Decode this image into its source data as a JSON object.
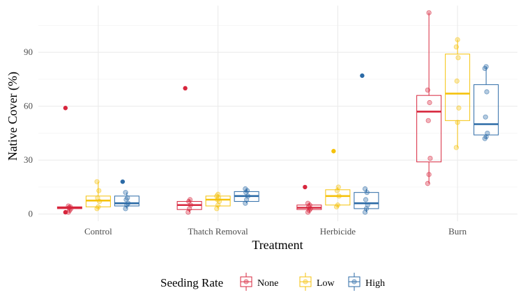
{
  "chart_data": {
    "type": "boxplot",
    "xlabel": "Treatment",
    "ylabel": "Native Cover (%)",
    "ylim": [
      -4,
      116
    ],
    "yticks": [
      0,
      30,
      60,
      90
    ],
    "grid": true,
    "legend": {
      "title": "Seeding Rate",
      "position": "bottom"
    },
    "categories": [
      "Control",
      "Thatch Removal",
      "Herbicide",
      "Burn"
    ],
    "series": [
      {
        "name": "None",
        "color": "#d7263d",
        "boxes": [
          {
            "min": 1,
            "q1": 3,
            "median": 3.5,
            "q3": 4,
            "max": 4.5,
            "outliers": [
              59,
              1
            ],
            "points": [
              1,
              2,
              3,
              3.5,
              4,
              4.5
            ]
          },
          {
            "min": 1,
            "q1": 2.5,
            "median": 5,
            "q3": 7,
            "max": 8,
            "outliers": [
              70
            ],
            "points": [
              1,
              3,
              5,
              7,
              8
            ]
          },
          {
            "min": 1,
            "q1": 2.5,
            "median": 3.5,
            "q3": 5,
            "max": 6,
            "outliers": [
              15
            ],
            "points": [
              1,
              2,
              3,
              4,
              5,
              6
            ]
          },
          {
            "min": 17,
            "q1": 29,
            "median": 57,
            "q3": 66,
            "max": 112,
            "outliers": [],
            "points": [
              17,
              22,
              31,
              52,
              62,
              69,
              112
            ]
          }
        ]
      },
      {
        "name": "Low",
        "color": "#f5c20b",
        "boxes": [
          {
            "min": 3,
            "q1": 4,
            "median": 7.5,
            "q3": 10,
            "max": 18,
            "outliers": [],
            "points": [
              3,
              4,
              7,
              9,
              13,
              18
            ]
          },
          {
            "min": 3,
            "q1": 4.5,
            "median": 8,
            "q3": 10,
            "max": 11,
            "outliers": [],
            "points": [
              3,
              5,
              7,
              8,
              9,
              10,
              11
            ]
          },
          {
            "min": 4,
            "q1": 5,
            "median": 10,
            "q3": 13.5,
            "max": 15,
            "outliers": [
              35
            ],
            "points": [
              4,
              5,
              10,
              13,
              15
            ]
          },
          {
            "min": 37,
            "q1": 52,
            "median": 67,
            "q3": 89,
            "max": 97,
            "outliers": [],
            "points": [
              37,
              51,
              59,
              74,
              87,
              93,
              97
            ]
          }
        ]
      },
      {
        "name": "High",
        "color": "#2b6aa6",
        "boxes": [
          {
            "min": 3,
            "q1": 4.5,
            "median": 6,
            "q3": 10,
            "max": 12,
            "outliers": [
              18
            ],
            "points": [
              3,
              5,
              6,
              8,
              9,
              12
            ]
          },
          {
            "min": 6,
            "q1": 7,
            "median": 10,
            "q3": 12.5,
            "max": 14,
            "outliers": [],
            "points": [
              6,
              8,
              10,
              12,
              13,
              14
            ]
          },
          {
            "min": 1,
            "q1": 3,
            "median": 6,
            "q3": 12,
            "max": 14,
            "outliers": [
              77
            ],
            "points": [
              1,
              3,
              5,
              8,
              12,
              14
            ]
          },
          {
            "min": 42,
            "q1": 44,
            "median": 50,
            "q3": 72,
            "max": 82,
            "outliers": [],
            "points": [
              42,
              43,
              45,
              54,
              68,
              81,
              82
            ]
          }
        ]
      }
    ]
  }
}
